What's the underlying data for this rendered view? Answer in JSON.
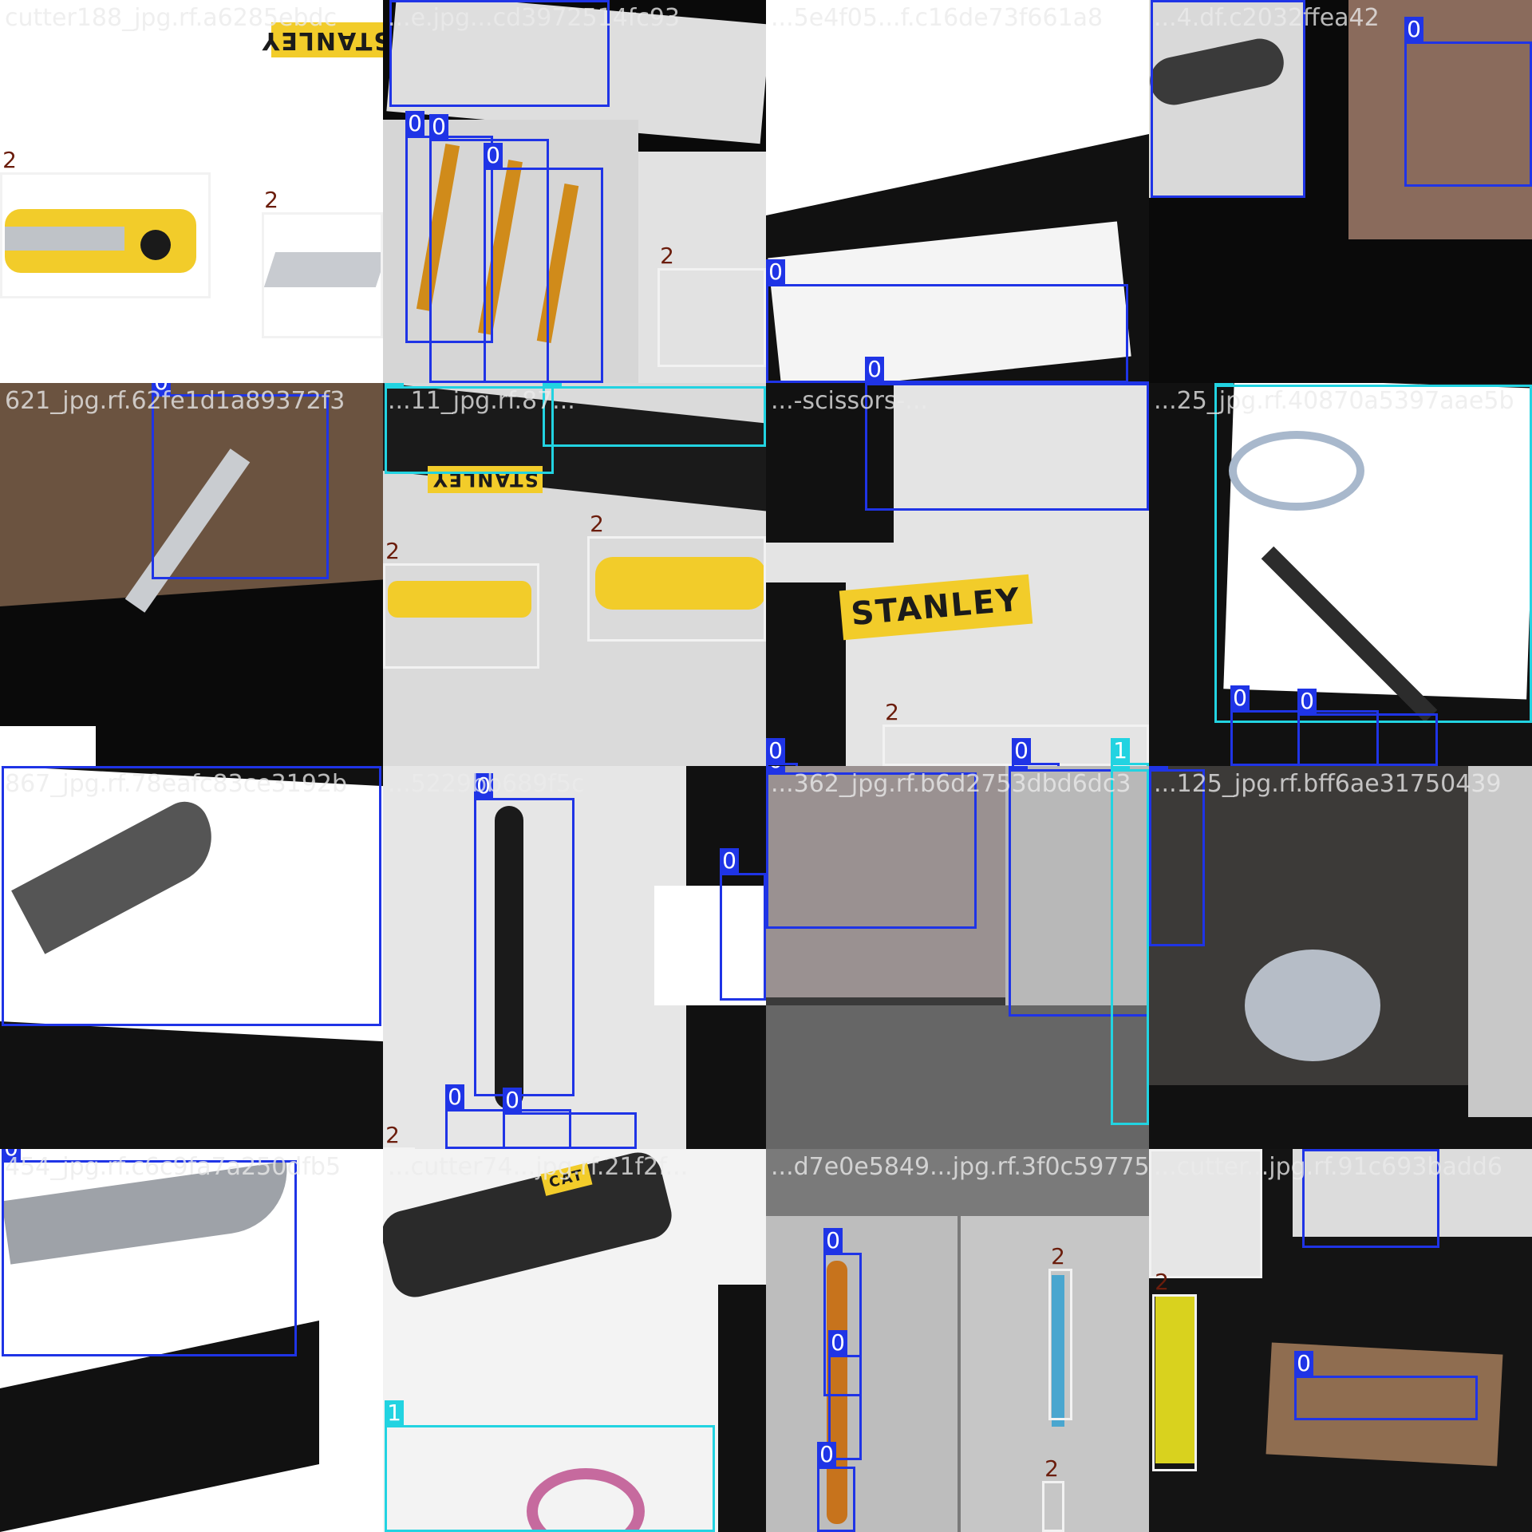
{
  "title": "",
  "colors": {
    "class_0": "#1f34e6",
    "class_1": "#22d3e1",
    "class_2": "#f2f2f2",
    "label_2_text": "#6b1d0c",
    "filename_text": "#ebebeb"
  },
  "tiles": [
    {
      "filename": "cutter188_jpg.rf.a6285ebdc",
      "boxes": [
        "2",
        "2"
      ]
    },
    {
      "filename": "...e.jpg...cd3972514fc93",
      "boxes": [
        "0",
        "0",
        "0",
        "0",
        "2"
      ]
    },
    {
      "filename": "...5e4f05...f.c16de73f661a8",
      "boxes": [
        "0",
        "0"
      ]
    },
    {
      "filename": "...4.df.c2032ffea42",
      "boxes": [
        "0",
        "0"
      ]
    },
    {
      "filename": "621_jpg.rf.62fe1d1a89372f3",
      "boxes": [
        "0"
      ]
    },
    {
      "filename": "...11_jpg.rf.87...",
      "boxes": [
        "1",
        "1",
        "2",
        "2"
      ]
    },
    {
      "filename": "...-scissors-...",
      "boxes": [
        "0",
        "2",
        "0",
        "0",
        "1"
      ]
    },
    {
      "filename": "...25_jpg.rf.40870a5397aae5b",
      "boxes": [
        "1",
        "0",
        "0"
      ]
    },
    {
      "filename": "867_jpg.rf.78eafc83ce3192b",
      "boxes": [
        "0"
      ]
    },
    {
      "filename": "...5229bb689f5c",
      "boxes": [
        "0",
        "0",
        "0",
        "0",
        "2"
      ]
    },
    {
      "filename": "...362_jpg.rf.b6d2753dbd6dc3",
      "boxes": [
        "0",
        "0",
        "1"
      ]
    },
    {
      "filename": "...125_jpg.rf.bff6ae31750439",
      "boxes": [
        "0"
      ]
    },
    {
      "filename": "454_jpg.rf.c6c9fa7a250dfb5",
      "boxes": [
        "0"
      ]
    },
    {
      "filename": "...cutter74...jpg.rf.21f2f...",
      "boxes": [
        "1"
      ]
    },
    {
      "filename": "...d7e0e5849...jpg.rf.3f0c59775fb...",
      "boxes": [
        "0",
        "0",
        "0",
        "2",
        "2"
      ]
    },
    {
      "filename": "...cutter...jpg.rf.91c693badd6",
      "boxes": [
        "2",
        "2",
        "0",
        "0"
      ]
    }
  ],
  "logos": {
    "stanley": "STANLEY",
    "cat": "CAT"
  }
}
